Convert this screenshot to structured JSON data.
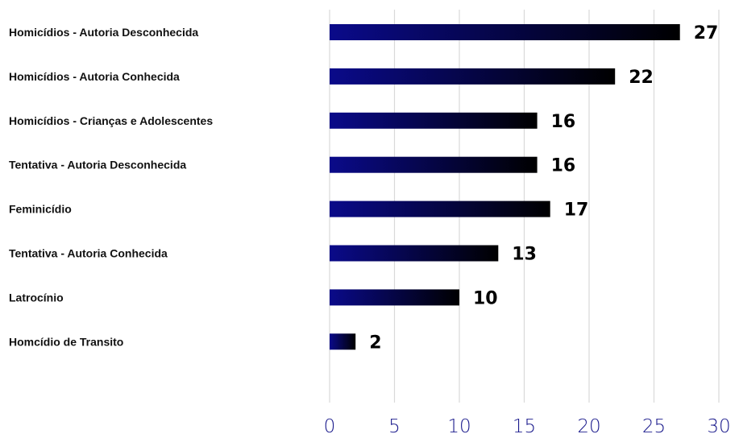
{
  "chart_data": {
    "type": "bar",
    "orientation": "horizontal",
    "categories": [
      "Homicídios - Autoria Desconhecida",
      "Homicídios - Autoria Conhecida",
      "Homicídios - Crianças e Adolescentes",
      "Tentativa -  Autoria Desconhecida",
      "Feminicídio",
      "Tentativa -  Autoria Conhecida",
      "Latrocínio",
      "Homcídio de Transito"
    ],
    "values": [
      27,
      22,
      16,
      16,
      17,
      13,
      10,
      2
    ],
    "data_labels": [
      "27",
      "22",
      "16",
      "16",
      "17",
      "13",
      "10",
      "2"
    ],
    "xlim": [
      0,
      30
    ],
    "xticks": [
      "0",
      "5",
      "10",
      "15",
      "20",
      "25",
      "30"
    ],
    "grid": "vertical",
    "legend": "none",
    "colors": {
      "bar_start": "#0a0a8a",
      "bar_end": "#000000",
      "grid": "#d9d9d9",
      "tick": "#1a1a8c"
    }
  }
}
